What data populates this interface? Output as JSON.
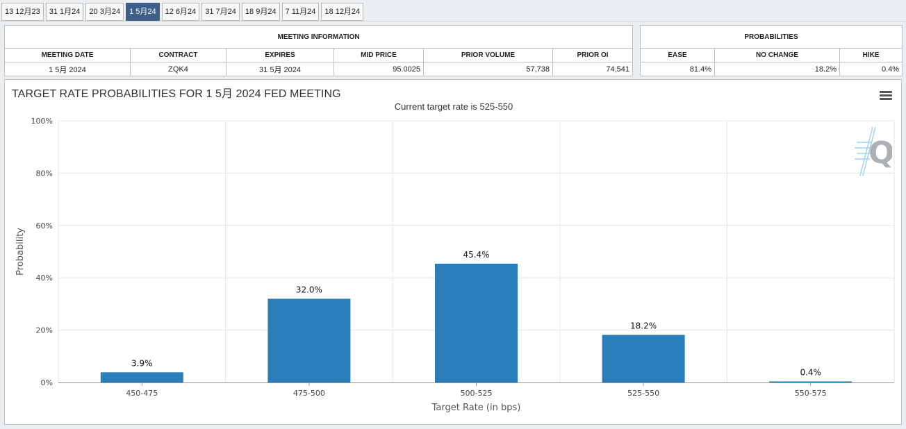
{
  "tabs": [
    {
      "label": "13 12月23",
      "active": false
    },
    {
      "label": "31 1月24",
      "active": false
    },
    {
      "label": "20 3月24",
      "active": false
    },
    {
      "label": "1 5月24",
      "active": true
    },
    {
      "label": "12 6月24",
      "active": false
    },
    {
      "label": "31 7月24",
      "active": false
    },
    {
      "label": "18 9月24",
      "active": false
    },
    {
      "label": "7 11月24",
      "active": false
    },
    {
      "label": "18 12月24",
      "active": false
    }
  ],
  "meeting_info": {
    "title": "MEETING INFORMATION",
    "headers": [
      "MEETING DATE",
      "CONTRACT",
      "EXPIRES",
      "MID PRICE",
      "PRIOR VOLUME",
      "PRIOR OI"
    ],
    "values": [
      "1 5月 2024",
      "ZQK4",
      "31 5月 2024",
      "95.0025",
      "57,738",
      "74,541"
    ]
  },
  "probabilities": {
    "title": "PROBABILITIES",
    "headers": [
      "EASE",
      "NO CHANGE",
      "HIKE"
    ],
    "values": [
      "81.4%",
      "18.2%",
      "0.4%"
    ]
  },
  "icons": {
    "menu": "hamburger-menu-icon",
    "logo": "q-logo-icon"
  },
  "colors": {
    "bar": "#2a7fba",
    "active_tab": "#3d5f87"
  },
  "chart_data": {
    "type": "bar",
    "title": "TARGET RATE PROBABILITIES FOR 1 5月 2024 FED MEETING",
    "subtitle": "Current target rate is 525-550",
    "xlabel": "Target Rate (in bps)",
    "ylabel": "Probability",
    "categories": [
      "450-475",
      "475-500",
      "500-525",
      "525-550",
      "550-575"
    ],
    "values": [
      3.9,
      32.0,
      45.4,
      18.2,
      0.4
    ],
    "data_labels": [
      "3.9%",
      "32.0%",
      "45.4%",
      "18.2%",
      "0.4%"
    ],
    "ylim": [
      0,
      100
    ],
    "yticks": [
      0,
      20,
      40,
      60,
      80,
      100
    ],
    "ytick_labels": [
      "0%",
      "20%",
      "40%",
      "60%",
      "80%",
      "100%"
    ],
    "grid": true
  }
}
